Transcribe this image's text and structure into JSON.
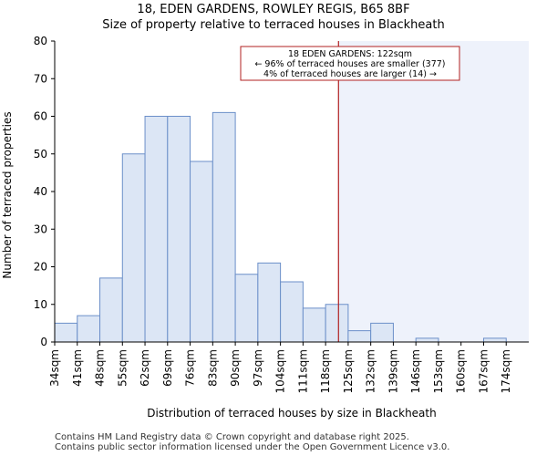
{
  "colors": {
    "bar_fill": "#dce6f5",
    "bar_stroke": "#6b8fc9",
    "highlight_fill": "#eef2fb",
    "marker_line": "#b22222",
    "annotation_border": "#b22222",
    "axis": "#000000"
  },
  "header": {
    "title_line1": "18, EDEN GARDENS, ROWLEY REGIS, B65 8BF",
    "title_line2": "Size of property relative to terraced houses in Blackheath"
  },
  "footer": {
    "line1": "Contains HM Land Registry data © Crown copyright and database right 2025.",
    "line2": "Contains public sector information licensed under the Open Government Licence v3.0."
  },
  "chart_data": {
    "type": "bar",
    "title": "Size of property relative to terraced houses in Blackheath",
    "xlabel": "Distribution of terraced houses by size in Blackheath",
    "ylabel": "Number of terraced properties",
    "ylim": [
      0,
      80
    ],
    "yticks": [
      0,
      10,
      20,
      30,
      40,
      50,
      60,
      70,
      80
    ],
    "categories": [
      "34sqm",
      "41sqm",
      "48sqm",
      "55sqm",
      "62sqm",
      "69sqm",
      "76sqm",
      "83sqm",
      "90sqm",
      "97sqm",
      "104sqm",
      "111sqm",
      "118sqm",
      "125sqm",
      "132sqm",
      "139sqm",
      "146sqm",
      "153sqm",
      "160sqm",
      "167sqm",
      "174sqm"
    ],
    "values": [
      5,
      7,
      17,
      50,
      60,
      60,
      48,
      61,
      18,
      21,
      16,
      9,
      10,
      3,
      5,
      0,
      1,
      0,
      0,
      1,
      0
    ],
    "marker": {
      "value_sqm": 122,
      "label_line1": "18 EDEN GARDENS: 122sqm",
      "label_line2": "← 96% of terraced houses are smaller (377)",
      "label_line3": "4% of terraced houses are larger (14) →"
    }
  }
}
